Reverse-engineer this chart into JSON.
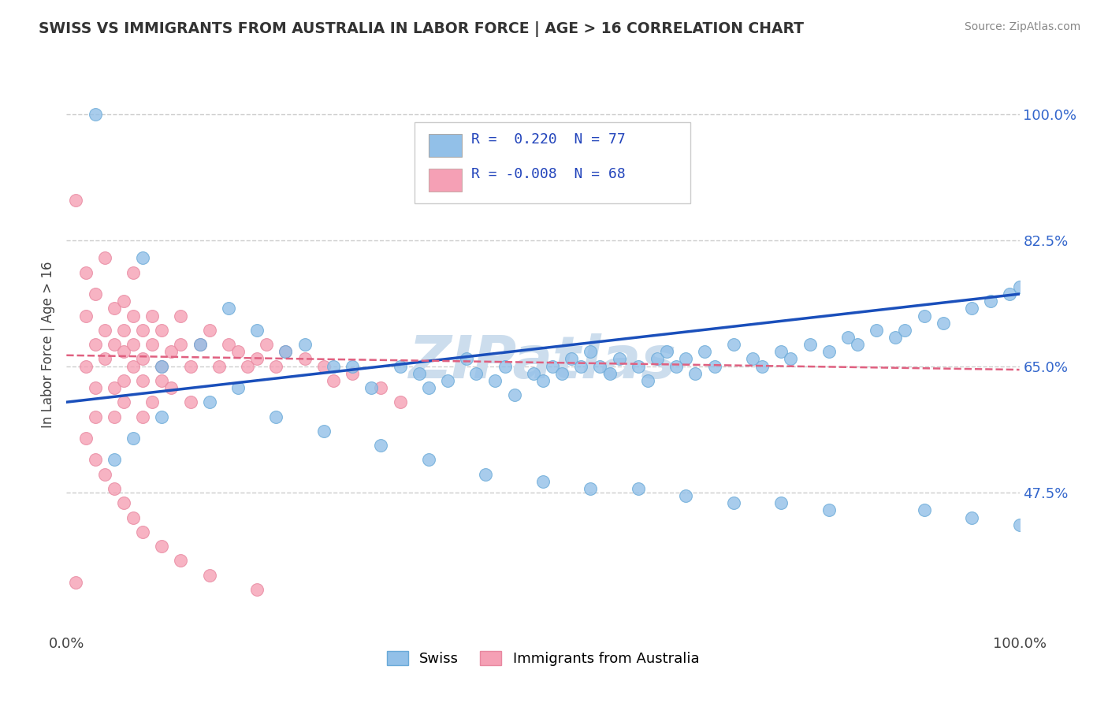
{
  "title": "SWISS VS IMMIGRANTS FROM AUSTRALIA IN LABOR FORCE | AGE > 16 CORRELATION CHART",
  "source": "Source: ZipAtlas.com",
  "ylabel": "In Labor Force | Age > 16",
  "xlim": [
    0,
    100
  ],
  "ylim": [
    28,
    108
  ],
  "ytick_values": [
    47.5,
    65.0,
    82.5,
    100.0
  ],
  "legend_labels": [
    "Swiss",
    "Immigrants from Australia"
  ],
  "R_blue": 0.22,
  "N_blue": 77,
  "R_pink": -0.008,
  "N_pink": 68,
  "blue_color": "#92c0e8",
  "pink_color": "#f5a0b5",
  "blue_edge_color": "#6aaad8",
  "pink_edge_color": "#e888a0",
  "blue_line_color": "#1a4fbb",
  "pink_line_color": "#e06080",
  "watermark": "ZIPatlas",
  "watermark_color": "#ccdded",
  "background_color": "#ffffff",
  "grid_color": "#cccccc",
  "swiss_x": [
    3,
    8,
    17,
    10,
    14,
    20,
    23,
    25,
    28,
    30,
    32,
    35,
    37,
    38,
    40,
    42,
    43,
    45,
    46,
    47,
    49,
    50,
    51,
    52,
    53,
    54,
    55,
    56,
    57,
    58,
    60,
    61,
    62,
    63,
    64,
    65,
    66,
    67,
    68,
    70,
    72,
    73,
    75,
    76,
    78,
    80,
    82,
    83,
    85,
    87,
    88,
    90,
    92,
    95,
    97,
    99,
    100,
    5,
    7,
    10,
    15,
    18,
    22,
    27,
    33,
    38,
    44,
    50,
    55,
    60,
    65,
    70,
    75,
    80,
    90,
    95,
    100
  ],
  "swiss_y": [
    100,
    80,
    73,
    65,
    68,
    70,
    67,
    68,
    65,
    65,
    62,
    65,
    64,
    62,
    63,
    66,
    64,
    63,
    65,
    61,
    64,
    63,
    65,
    64,
    66,
    65,
    67,
    65,
    64,
    66,
    65,
    63,
    66,
    67,
    65,
    66,
    64,
    67,
    65,
    68,
    66,
    65,
    67,
    66,
    68,
    67,
    69,
    68,
    70,
    69,
    70,
    72,
    71,
    73,
    74,
    75,
    76,
    52,
    55,
    58,
    60,
    62,
    58,
    56,
    54,
    52,
    50,
    49,
    48,
    48,
    47,
    46,
    46,
    45,
    45,
    44,
    43
  ],
  "aus_x": [
    1,
    1,
    2,
    2,
    2,
    3,
    3,
    3,
    3,
    4,
    4,
    4,
    5,
    5,
    5,
    5,
    6,
    6,
    6,
    6,
    6,
    7,
    7,
    7,
    7,
    8,
    8,
    8,
    8,
    9,
    9,
    9,
    10,
    10,
    10,
    11,
    11,
    12,
    12,
    13,
    13,
    14,
    15,
    16,
    17,
    18,
    19,
    20,
    21,
    22,
    23,
    25,
    27,
    28,
    30,
    33,
    35,
    2,
    3,
    4,
    5,
    6,
    7,
    8,
    10,
    12,
    15,
    20
  ],
  "aus_y": [
    35,
    88,
    72,
    65,
    78,
    68,
    75,
    62,
    58,
    70,
    66,
    80,
    73,
    68,
    62,
    58,
    70,
    67,
    63,
    74,
    60,
    72,
    68,
    65,
    78,
    66,
    70,
    63,
    58,
    68,
    72,
    60,
    65,
    70,
    63,
    67,
    62,
    68,
    72,
    65,
    60,
    68,
    70,
    65,
    68,
    67,
    65,
    66,
    68,
    65,
    67,
    66,
    65,
    63,
    64,
    62,
    60,
    55,
    52,
    50,
    48,
    46,
    44,
    42,
    40,
    38,
    36,
    34
  ]
}
